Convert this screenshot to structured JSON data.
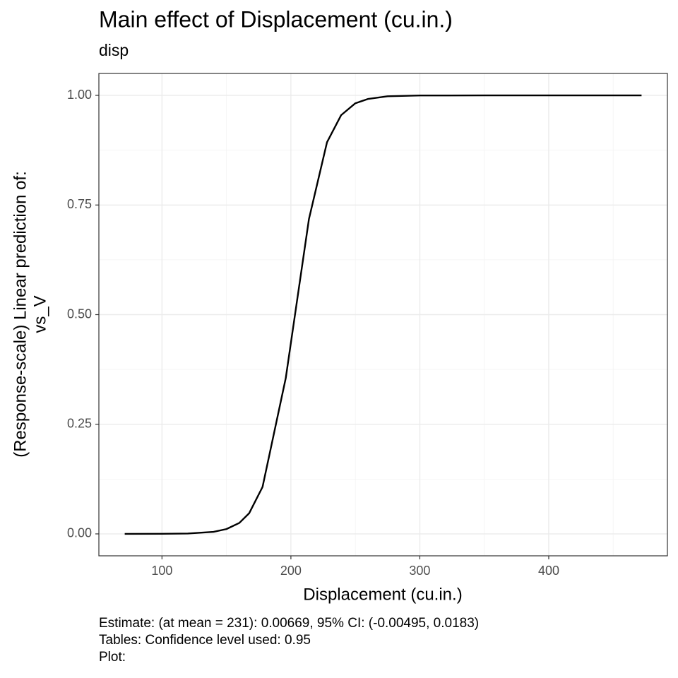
{
  "chart_data": {
    "type": "line",
    "title": "Main effect of Displacement (cu.in.)",
    "subtitle": "disp",
    "xlabel": "Displacement (cu.in.)",
    "ylabel": [
      "(Response-scale) Linear prediction of:",
      "vs_V"
    ],
    "caption": [
      "Estimate: (at mean = 231): 0.00669, 95% CI: (-0.00495, 0.0183)",
      "Tables: Confidence level used: 0.95",
      "Plot:"
    ],
    "x": [
      71.1,
      100,
      120,
      140,
      150,
      160,
      167.6,
      178,
      196,
      214,
      228,
      239,
      250,
      260,
      275,
      300,
      350,
      400,
      472
    ],
    "series": [
      {
        "color": "#000000",
        "values": [
          0.0,
          0.00016,
          0.00086,
          0.0047,
          0.011,
          0.025,
          0.047,
          0.107,
          0.355,
          0.718,
          0.893,
          0.955,
          0.982,
          0.992,
          0.998,
          0.9997,
          1.0,
          1.0,
          1.0
        ]
      }
    ],
    "xlim": [
      51.05,
      492.05
    ],
    "ylim": [
      -0.05,
      1.05
    ],
    "xticks": [
      100,
      200,
      300,
      400
    ],
    "yticks": [
      {
        "value": 0,
        "label": "0.00"
      },
      {
        "value": 0.25,
        "label": "0.25"
      },
      {
        "value": 0.5,
        "label": "0.50"
      },
      {
        "value": 0.75,
        "label": "0.75"
      },
      {
        "value": 1,
        "label": "1.00"
      }
    ],
    "grid": true
  }
}
